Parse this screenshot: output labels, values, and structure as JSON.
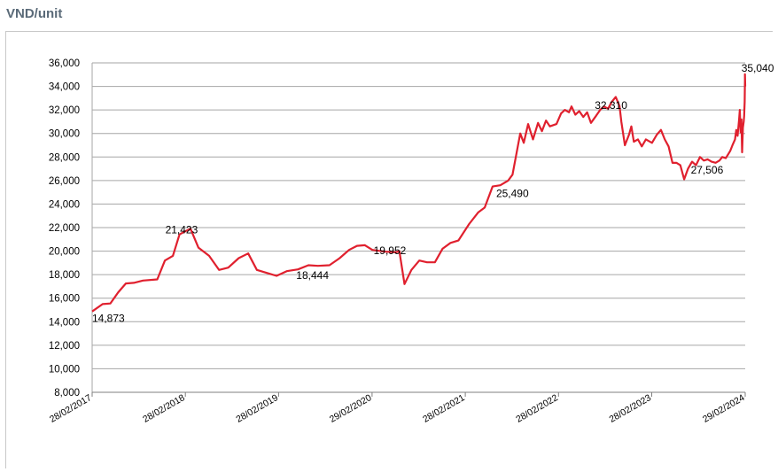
{
  "header": {
    "unit_label": "VND/unit"
  },
  "colors": {
    "line": "#e0202e",
    "grid": "#a6a6a6",
    "axis_text": "#000000"
  },
  "chart_data": {
    "type": "line",
    "title": "",
    "ylabel": "VND/unit",
    "xlabel": "",
    "ylim": [
      8000,
      36000
    ],
    "y_ticks": [
      8000,
      10000,
      12000,
      14000,
      16000,
      18000,
      20000,
      22000,
      24000,
      26000,
      28000,
      30000,
      32000,
      34000,
      36000
    ],
    "y_tick_labels": [
      "8,000",
      "10,000",
      "12,000",
      "14,000",
      "16,000",
      "18,000",
      "20,000",
      "22,000",
      "24,000",
      "26,000",
      "28,000",
      "30,000",
      "32,000",
      "34,000",
      "36,000"
    ],
    "x_start": "2017-02-28",
    "x_end": "2024-02-29",
    "x_ticks": [
      "2017-02-28",
      "2018-02-28",
      "2019-02-28",
      "2020-02-29",
      "2021-02-28",
      "2022-02-28",
      "2023-02-28",
      "2024-02-29"
    ],
    "x_tick_labels": [
      "28/02/2017",
      "28/02/2018",
      "28/02/2019",
      "29/02/2020",
      "28/02/2021",
      "28/02/2022",
      "28/02/2023",
      "29/02/2024"
    ],
    "grid": true,
    "series": [
      {
        "points": [
          [
            "2017-02-28",
            14873
          ],
          [
            "2017-04-10",
            15500
          ],
          [
            "2017-05-10",
            15550
          ],
          [
            "2017-06-10",
            16500
          ],
          [
            "2017-07-10",
            17250
          ],
          [
            "2017-08-10",
            17300
          ],
          [
            "2017-09-15",
            17500
          ],
          [
            "2017-11-10",
            17600
          ],
          [
            "2017-12-10",
            19200
          ],
          [
            "2018-01-10",
            19600
          ],
          [
            "2018-02-05",
            21423
          ],
          [
            "2018-03-01",
            21700
          ],
          [
            "2018-03-20",
            21900
          ],
          [
            "2018-04-20",
            20300
          ],
          [
            "2018-06-01",
            19600
          ],
          [
            "2018-07-10",
            18400
          ],
          [
            "2018-08-15",
            18600
          ],
          [
            "2018-09-25",
            19400
          ],
          [
            "2018-11-01",
            19800
          ],
          [
            "2018-12-05",
            18400
          ],
          [
            "2019-01-20",
            18100
          ],
          [
            "2019-02-20",
            17900
          ],
          [
            "2019-04-01",
            18300
          ],
          [
            "2019-05-15",
            18444
          ],
          [
            "2019-06-25",
            18800
          ],
          [
            "2019-08-01",
            18750
          ],
          [
            "2019-09-15",
            18800
          ],
          [
            "2019-10-25",
            19400
          ],
          [
            "2019-12-01",
            20100
          ],
          [
            "2020-01-01",
            20450
          ],
          [
            "2020-02-01",
            20500
          ],
          [
            "2020-03-01",
            20100
          ],
          [
            "2020-04-20",
            19952
          ],
          [
            "2020-06-01",
            19900
          ],
          [
            "2020-06-15",
            20000
          ],
          [
            "2020-07-05",
            17200
          ],
          [
            "2020-08-01",
            18400
          ],
          [
            "2020-09-01",
            19200
          ],
          [
            "2020-10-01",
            19050
          ],
          [
            "2020-11-01",
            19050
          ],
          [
            "2020-12-01",
            20200
          ],
          [
            "2021-01-01",
            20700
          ],
          [
            "2021-02-01",
            20900
          ],
          [
            "2021-03-15",
            22300
          ],
          [
            "2021-04-20",
            23300
          ],
          [
            "2021-05-15",
            23700
          ],
          [
            "2021-06-15",
            25490
          ],
          [
            "2021-07-15",
            25600
          ],
          [
            "2021-08-15",
            26000
          ],
          [
            "2021-09-01",
            26500
          ],
          [
            "2021-10-01",
            30000
          ],
          [
            "2021-10-15",
            29200
          ],
          [
            "2021-11-01",
            30800
          ],
          [
            "2021-11-20",
            29500
          ],
          [
            "2021-12-10",
            30900
          ],
          [
            "2021-12-25",
            30200
          ],
          [
            "2022-01-10",
            31100
          ],
          [
            "2022-01-25",
            30600
          ],
          [
            "2022-02-20",
            30800
          ],
          [
            "2022-03-10",
            31700
          ],
          [
            "2022-03-25",
            32000
          ],
          [
            "2022-04-10",
            31800
          ],
          [
            "2022-04-20",
            32300
          ],
          [
            "2022-05-05",
            31600
          ],
          [
            "2022-05-20",
            31900
          ],
          [
            "2022-06-05",
            31400
          ],
          [
            "2022-06-20",
            31800
          ],
          [
            "2022-07-05",
            30900
          ],
          [
            "2022-07-25",
            31500
          ],
          [
            "2022-08-10",
            32000
          ],
          [
            "2022-08-25",
            32300
          ],
          [
            "2022-09-10",
            32100
          ],
          [
            "2022-09-25",
            32700
          ],
          [
            "2022-10-10",
            33100
          ],
          [
            "2022-10-25",
            32310
          ],
          [
            "2022-11-01",
            31000
          ],
          [
            "2022-11-15",
            29000
          ],
          [
            "2022-12-01",
            29900
          ],
          [
            "2022-12-10",
            30600
          ],
          [
            "2022-12-20",
            29300
          ],
          [
            "2023-01-05",
            29500
          ],
          [
            "2023-01-20",
            28900
          ],
          [
            "2023-02-05",
            29500
          ],
          [
            "2023-03-01",
            29200
          ],
          [
            "2023-03-20",
            29900
          ],
          [
            "2023-04-05",
            30300
          ],
          [
            "2023-04-20",
            29500
          ],
          [
            "2023-05-05",
            28900
          ],
          [
            "2023-05-20",
            27500
          ],
          [
            "2023-06-05",
            27500
          ],
          [
            "2023-06-20",
            27300
          ],
          [
            "2023-07-05",
            26100
          ],
          [
            "2023-07-20",
            27000
          ],
          [
            "2023-08-05",
            27600
          ],
          [
            "2023-08-20",
            27300
          ],
          [
            "2023-09-05",
            28000
          ],
          [
            "2023-09-20",
            27700
          ],
          [
            "2023-10-05",
            27800
          ],
          [
            "2023-10-20",
            27600
          ],
          [
            "2023-11-05",
            27506
          ],
          [
            "2023-11-20",
            27700
          ],
          [
            "2023-12-01",
            28000
          ],
          [
            "2023-12-15",
            27900
          ],
          [
            "2024-01-01",
            28500
          ],
          [
            "2024-01-10",
            29000
          ],
          [
            "2024-01-20",
            29500
          ],
          [
            "2024-01-25",
            30300
          ],
          [
            "2024-01-30",
            29800
          ],
          [
            "2024-02-05",
            31200
          ],
          [
            "2024-02-08",
            32000
          ],
          [
            "2024-02-11",
            30100
          ],
          [
            "2024-02-14",
            31200
          ],
          [
            "2024-02-17",
            28400
          ],
          [
            "2024-02-20",
            30500
          ],
          [
            "2024-02-23",
            31000
          ],
          [
            "2024-02-25",
            31500
          ],
          [
            "2024-02-27",
            32700
          ],
          [
            "2024-02-28",
            34500
          ],
          [
            "2024-02-28",
            35040
          ],
          [
            "2024-02-29",
            34000
          ]
        ]
      }
    ],
    "annotations": [
      {
        "text": "14,873",
        "date": "2017-02-28",
        "value": 14873
      },
      {
        "text": "21,423",
        "date": "2018-02-05",
        "value": 21423
      },
      {
        "text": "18,444",
        "date": "2019-05-15",
        "value": 18444
      },
      {
        "text": "19,952",
        "date": "2020-04-20",
        "value": 19952
      },
      {
        "text": "25,490",
        "date": "2021-06-15",
        "value": 25490
      },
      {
        "text": "32,310",
        "date": "2022-10-25",
        "value": 32310
      },
      {
        "text": "27,506",
        "date": "2023-11-05",
        "value": 27506
      },
      {
        "text": "35,040",
        "date": "2024-02-28",
        "value": 35040
      }
    ]
  }
}
